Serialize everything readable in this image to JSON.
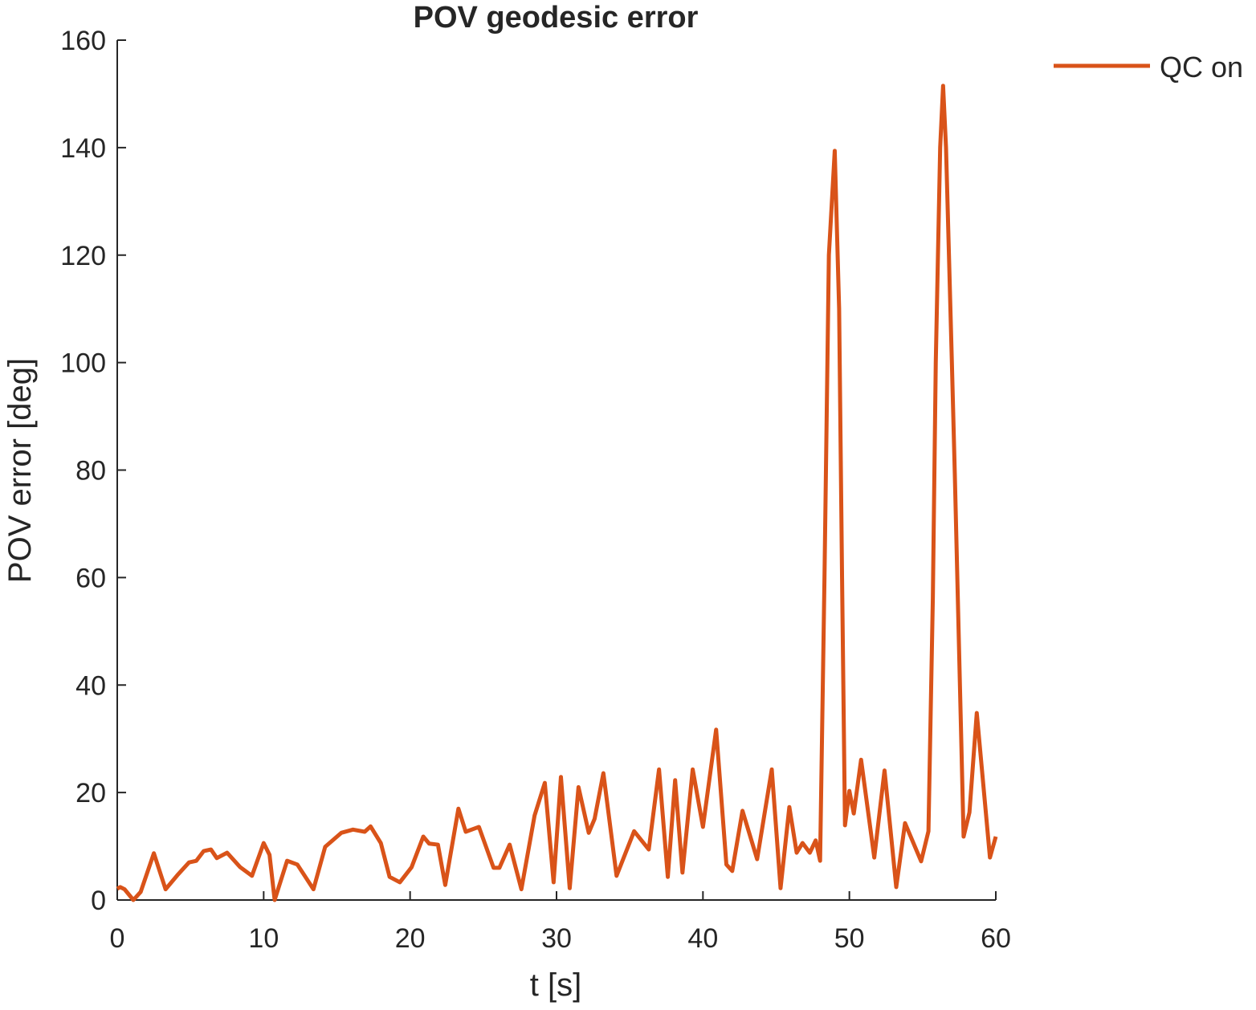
{
  "chart_data": {
    "type": "line",
    "title": "POV geodesic error",
    "x_label": "t [s]",
    "y_label": "POV error [deg]",
    "xlim": [
      0,
      60
    ],
    "xticks": [
      0,
      10,
      20,
      30,
      40,
      50,
      60
    ],
    "ylim": [
      0,
      160
    ],
    "yticks": [
      0,
      20,
      40,
      60,
      80,
      100,
      120,
      140,
      160
    ],
    "grid": false,
    "legend_position": "outside-top-right",
    "series": [
      {
        "name": "QC on",
        "color": "#d95319",
        "x": [
          0,
          0.2,
          0.5,
          1.1,
          1.6,
          2.5,
          3.3,
          4.1,
          4.9,
          5.4,
          5.9,
          6.4,
          6.8,
          7.5,
          8.4,
          9.2,
          10.0,
          10.4,
          10.75,
          11.6,
          12.3,
          13.4,
          14.2,
          15.3,
          16.1,
          16.9,
          17.3,
          18.0,
          18.6,
          19.3,
          20.1,
          20.9,
          21.3,
          21.9,
          22.4,
          23.3,
          23.8,
          24.7,
          25.7,
          26.1,
          26.8,
          27.6,
          28.5,
          29.2,
          29.8,
          30.3,
          30.9,
          31.5,
          32.2,
          32.6,
          33.2,
          34.1,
          35.3,
          36.3,
          37.0,
          37.6,
          38.1,
          38.6,
          39.3,
          40.0,
          40.9,
          41.6,
          42.0,
          42.7,
          43.7,
          44.7,
          45.3,
          45.9,
          46.4,
          46.8,
          47.3,
          47.7,
          48.0,
          48.3,
          48.6,
          49.0,
          49.3,
          49.5,
          49.7,
          50.0,
          50.3,
          50.8,
          51.7,
          52.4,
          53.2,
          53.8,
          54.9,
          55.4,
          55.7,
          55.9,
          56.2,
          56.4,
          56.6,
          57.0,
          57.2,
          57.8,
          58.2,
          58.7,
          59.6,
          60.0
        ],
        "values": [
          2.1,
          2.4,
          2,
          0,
          1.5,
          8.7,
          2,
          4.6,
          7,
          7.3,
          9.1,
          9.4,
          7.8,
          8.8,
          6.1,
          4.5,
          10.6,
          8.4,
          0,
          7.3,
          6.6,
          2,
          9.9,
          12.5,
          13.1,
          12.7,
          13.7,
          10.6,
          4.3,
          3.3,
          6.1,
          11.8,
          10.5,
          10.3,
          2.8,
          17,
          12.7,
          13.6,
          6,
          6,
          10.3,
          2,
          15.7,
          21.8,
          3.3,
          22.9,
          2.2,
          21,
          12.5,
          15.1,
          23.6,
          4.5,
          12.8,
          9.4,
          24.3,
          4.3,
          22.3,
          5.1,
          24.3,
          13.6,
          31.7,
          6.6,
          5.4,
          16.6,
          7.6,
          24.3,
          2.2,
          17.3,
          8.8,
          10.6,
          8.8,
          11.1,
          7.3,
          60,
          120,
          139.4,
          110,
          60,
          13.9,
          20.3,
          16.1,
          26.1,
          7.9,
          24.1,
          2.4,
          14.3,
          7.2,
          12.8,
          56.2,
          100,
          140,
          151.5,
          140,
          100,
          79.3,
          11.8,
          16.3,
          34.8,
          7.9,
          11.8
        ]
      }
    ]
  }
}
